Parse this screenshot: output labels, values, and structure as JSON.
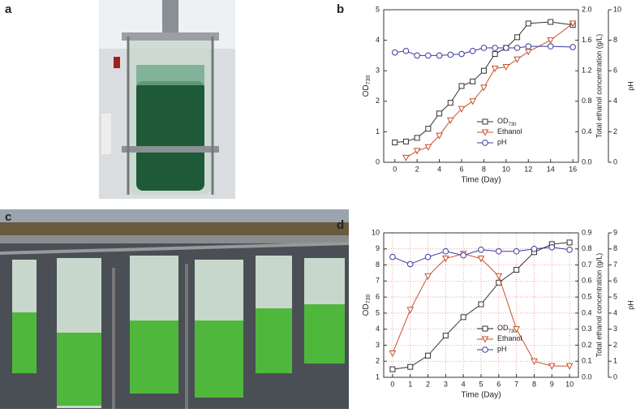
{
  "photos": [
    {
      "label": "a"
    },
    {
      "label": "c"
    }
  ],
  "chart_data": [
    {
      "type": "line",
      "label": "b",
      "xlabel": "Time (Day)",
      "ylabel": "OD",
      "ylabel_sub": "730",
      "y2label": "Total ethanol concentration (g/L)",
      "y3label": "pH",
      "x": [
        0,
        1,
        2,
        3,
        4,
        5,
        6,
        7,
        8,
        9,
        10,
        11,
        12,
        14,
        16
      ],
      "xlim": [
        -1,
        16.5
      ],
      "xticks": [
        0,
        2,
        4,
        6,
        8,
        10,
        12,
        14,
        16
      ],
      "ylim": [
        0,
        5
      ],
      "yticks": [
        0,
        1,
        2,
        3,
        4,
        5
      ],
      "y2lim": [
        0,
        2.0
      ],
      "y2ticks": [
        {
          "value": 0,
          "label": "0.0"
        },
        0.4,
        0.8,
        1.2,
        1.6,
        {
          "value": 2,
          "label": "2.0"
        }
      ],
      "y3lim": [
        0,
        10
      ],
      "y3ticks": [
        0,
        2,
        4,
        6,
        8,
        10
      ],
      "grid": false,
      "series": [
        {
          "name": "OD",
          "name_sub": "730",
          "color": "#333333",
          "marker": "square",
          "values": [
            0.65,
            0.68,
            0.8,
            1.1,
            1.6,
            1.95,
            2.5,
            2.65,
            3.0,
            3.55,
            3.75,
            4.1,
            4.55,
            4.6,
            4.5
          ]
        },
        {
          "name": "Ethanol",
          "color": "#c4502a",
          "marker": "triangle",
          "axis": "y2",
          "values": [
            null,
            0.06,
            0.15,
            0.2,
            0.35,
            0.55,
            0.7,
            0.8,
            0.98,
            1.23,
            1.25,
            1.35,
            1.45,
            1.6,
            1.82
          ]
        },
        {
          "name": "pH",
          "color": "#3a3a9e",
          "marker": "circle",
          "axis": "y3",
          "values": [
            7.2,
            7.3,
            7.0,
            7.0,
            7.0,
            7.05,
            7.1,
            7.3,
            7.5,
            7.5,
            7.5,
            7.5,
            7.6,
            7.6,
            7.55
          ]
        }
      ]
    },
    {
      "type": "line",
      "label": "d",
      "xlabel": "Time (Day)",
      "ylabel": "OD",
      "ylabel_sub": "730",
      "y2label": "Total ethanol concentration (g/L)",
      "y3label": "pH",
      "x": [
        0,
        1,
        2,
        3,
        4,
        5,
        6,
        7,
        8,
        9,
        10
      ],
      "xlim": [
        -0.5,
        10.5
      ],
      "xticks": [
        0,
        1,
        2,
        3,
        4,
        5,
        6,
        7,
        8,
        9,
        10
      ],
      "ylim": [
        1,
        10
      ],
      "yticks": [
        1,
        2,
        3,
        4,
        5,
        6,
        7,
        8,
        9,
        10
      ],
      "y2lim": [
        0,
        0.9
      ],
      "y2ticks": [
        {
          "value": 0,
          "label": "0.0"
        },
        0.1,
        0.2,
        0.3,
        0.4,
        0.5,
        0.6,
        0.7,
        0.8,
        0.9
      ],
      "y3lim": [
        0,
        9
      ],
      "y3ticks": [
        0,
        1,
        2,
        3,
        4,
        5,
        6,
        7,
        8,
        9
      ],
      "grid": true,
      "series": [
        {
          "name": "OD",
          "name_sub": "730",
          "color": "#333333",
          "marker": "square",
          "values": [
            1.5,
            1.65,
            2.35,
            3.6,
            4.75,
            5.55,
            6.9,
            7.7,
            8.8,
            9.3,
            9.4
          ]
        },
        {
          "name": "Ethanol",
          "color": "#c4502a",
          "marker": "triangle",
          "axis": "y2",
          "values": [
            0.15,
            0.42,
            0.63,
            0.74,
            0.77,
            0.74,
            0.63,
            0.3,
            0.1,
            0.07,
            0.07
          ]
        },
        {
          "name": "pH",
          "color": "#3a3a9e",
          "marker": "circle",
          "axis": "y3",
          "values": [
            7.5,
            7.05,
            7.5,
            7.85,
            7.6,
            7.95,
            7.85,
            7.85,
            8.0,
            8.1,
            7.95
          ]
        }
      ]
    }
  ]
}
